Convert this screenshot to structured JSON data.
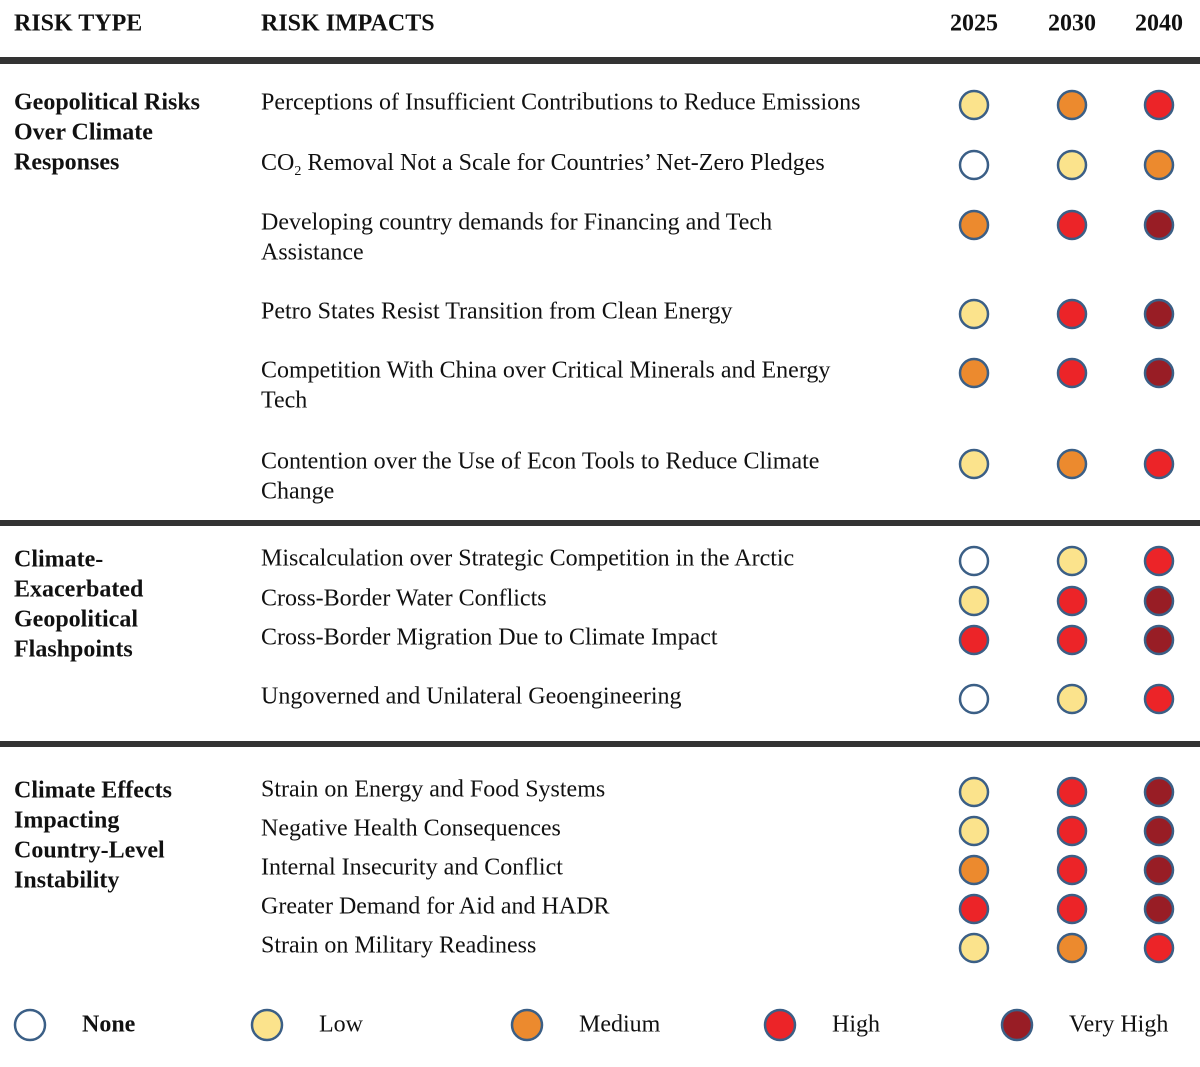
{
  "header": {
    "risk_type": "RISK TYPE",
    "risk_impacts": "RISK IMPACTS",
    "years": [
      "2025",
      "2030",
      "2040"
    ]
  },
  "sections": [
    {
      "title_lines": [
        "Geopolitical Risks",
        "Over Climate",
        "Responses"
      ],
      "rows": [
        {
          "lines": [
            "Perceptions of Insufficient Contributions to Reduce Emissions"
          ],
          "ratings": [
            1,
            2,
            3
          ]
        },
        {
          "lines": [
            [
              "CO",
              "2",
              " Removal Not a Scale for Countries’ Net-Zero Pledges"
            ]
          ],
          "ratings": [
            0,
            1,
            2
          ]
        },
        {
          "lines": [
            "Developing country demands for Financing and Tech",
            "Assistance"
          ],
          "ratings": [
            2,
            3,
            4
          ]
        },
        {
          "lines": [
            "Petro States Resist Transition from Clean Energy"
          ],
          "ratings": [
            1,
            3,
            4
          ]
        },
        {
          "lines": [
            "Competition With China over Critical Minerals and Energy",
            "Tech"
          ],
          "ratings": [
            2,
            3,
            4
          ]
        },
        {
          "lines": [
            "Contention over the Use of Econ Tools to Reduce Climate",
            "Change"
          ],
          "ratings": [
            1,
            2,
            3
          ]
        }
      ]
    },
    {
      "title_lines": [
        "Climate-",
        "Exacerbated",
        "Geopolitical",
        "Flashpoints"
      ],
      "rows": [
        {
          "lines": [
            "Miscalculation over Strategic Competition in the Arctic"
          ],
          "ratings": [
            0,
            1,
            3
          ]
        },
        {
          "lines": [
            "Cross-Border Water Conflicts"
          ],
          "ratings": [
            1,
            3,
            4
          ]
        },
        {
          "lines": [
            "Cross-Border Migration Due to Climate Impact"
          ],
          "ratings": [
            3,
            3,
            4
          ]
        },
        {
          "lines": [
            "Ungoverned and Unilateral Geoengineering"
          ],
          "ratings": [
            0,
            1,
            3
          ]
        }
      ]
    },
    {
      "title_lines": [
        "Climate Effects",
        "Impacting",
        "Country-Level",
        "Instability"
      ],
      "rows": [
        {
          "lines": [
            "Strain on Energy and Food Systems"
          ],
          "ratings": [
            1,
            3,
            4
          ]
        },
        {
          "lines": [
            "Negative Health Consequences"
          ],
          "ratings": [
            1,
            3,
            4
          ]
        },
        {
          "lines": [
            "Internal Insecurity and Conflict"
          ],
          "ratings": [
            2,
            3,
            4
          ]
        },
        {
          "lines": [
            "Greater Demand for Aid and HADR"
          ],
          "ratings": [
            3,
            3,
            4
          ]
        },
        {
          "lines": [
            "Strain on Military Readiness"
          ],
          "ratings": [
            1,
            2,
            3
          ]
        }
      ]
    }
  ],
  "legend": [
    {
      "label": "None",
      "color": "#ffffff"
    },
    {
      "label": "Low",
      "color": "#fbe38c"
    },
    {
      "label": "Medium",
      "color": "#ec8a2e"
    },
    {
      "label": "High",
      "color": "#ec2428"
    },
    {
      "label": "Very High",
      "color": "#981d25"
    }
  ]
}
